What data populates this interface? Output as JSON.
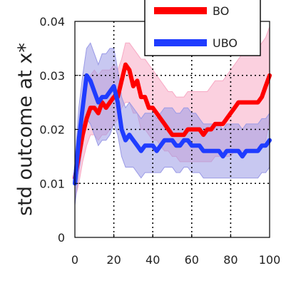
{
  "chart_data": {
    "type": "line",
    "xlabel": "",
    "ylabel": "std outcome at x*",
    "xlim": [
      0,
      100
    ],
    "ylim": [
      0,
      0.04
    ],
    "xticks": [
      0,
      20,
      40,
      60,
      80,
      100
    ],
    "xtick_labels": [
      "0",
      "20",
      "40",
      "60",
      "80",
      "100"
    ],
    "yticks": [
      0,
      0.01,
      0.02,
      0.03,
      0.04
    ],
    "ytick_labels": [
      "0",
      "0.01",
      "0.02",
      "0.03",
      "0.04"
    ],
    "grid": true,
    "legend_position": "top-right",
    "series": [
      {
        "name": "BO",
        "color": "#ff0000",
        "band_color": "#f7a9c4",
        "x": [
          0,
          2,
          4,
          6,
          8,
          10,
          12,
          14,
          16,
          18,
          20,
          22,
          24,
          26,
          28,
          30,
          32,
          34,
          36,
          38,
          40,
          42,
          44,
          46,
          48,
          50,
          52,
          54,
          56,
          58,
          60,
          62,
          64,
          66,
          68,
          70,
          72,
          74,
          76,
          78,
          80,
          82,
          84,
          86,
          88,
          90,
          92,
          94,
          96,
          98,
          100
        ],
        "mean": [
          0.011,
          0.015,
          0.019,
          0.022,
          0.024,
          0.024,
          0.023,
          0.025,
          0.024,
          0.025,
          0.026,
          0.026,
          0.029,
          0.032,
          0.031,
          0.028,
          0.029,
          0.026,
          0.026,
          0.024,
          0.024,
          0.023,
          0.022,
          0.021,
          0.02,
          0.019,
          0.019,
          0.019,
          0.019,
          0.02,
          0.02,
          0.02,
          0.02,
          0.019,
          0.02,
          0.02,
          0.021,
          0.021,
          0.021,
          0.022,
          0.023,
          0.024,
          0.025,
          0.025,
          0.025,
          0.025,
          0.025,
          0.025,
          0.026,
          0.028,
          0.03
        ],
        "lower": [
          0.007,
          0.01,
          0.014,
          0.017,
          0.019,
          0.019,
          0.018,
          0.019,
          0.019,
          0.02,
          0.021,
          0.022,
          0.024,
          0.025,
          0.025,
          0.023,
          0.023,
          0.02,
          0.02,
          0.019,
          0.018,
          0.018,
          0.017,
          0.016,
          0.016,
          0.015,
          0.015,
          0.014,
          0.014,
          0.014,
          0.014,
          0.014,
          0.014,
          0.014,
          0.014,
          0.014,
          0.015,
          0.015,
          0.015,
          0.015,
          0.015,
          0.016,
          0.016,
          0.016,
          0.016,
          0.016,
          0.016,
          0.016,
          0.017,
          0.018,
          0.022
        ],
        "upper": [
          0.013,
          0.02,
          0.025,
          0.028,
          0.03,
          0.031,
          0.03,
          0.031,
          0.031,
          0.031,
          0.032,
          0.031,
          0.033,
          0.036,
          0.036,
          0.035,
          0.034,
          0.033,
          0.033,
          0.032,
          0.031,
          0.03,
          0.029,
          0.028,
          0.027,
          0.027,
          0.026,
          0.026,
          0.026,
          0.027,
          0.027,
          0.027,
          0.027,
          0.027,
          0.027,
          0.028,
          0.029,
          0.029,
          0.029,
          0.03,
          0.031,
          0.032,
          0.033,
          0.034,
          0.034,
          0.034,
          0.035,
          0.035,
          0.036,
          0.037,
          0.039
        ]
      },
      {
        "name": "UBO",
        "color": "#1f3cff",
        "band_color": "#9a9ae6",
        "x": [
          0,
          2,
          4,
          6,
          8,
          10,
          12,
          14,
          16,
          18,
          20,
          22,
          24,
          26,
          28,
          30,
          32,
          34,
          36,
          38,
          40,
          42,
          44,
          46,
          48,
          50,
          52,
          54,
          56,
          58,
          60,
          62,
          64,
          66,
          68,
          70,
          72,
          74,
          76,
          78,
          80,
          82,
          84,
          86,
          88,
          90,
          92,
          94,
          96,
          98,
          100
        ],
        "mean": [
          0.01,
          0.018,
          0.024,
          0.03,
          0.029,
          0.027,
          0.025,
          0.026,
          0.026,
          0.027,
          0.028,
          0.025,
          0.02,
          0.018,
          0.019,
          0.018,
          0.017,
          0.016,
          0.017,
          0.017,
          0.017,
          0.016,
          0.017,
          0.018,
          0.018,
          0.018,
          0.017,
          0.017,
          0.018,
          0.018,
          0.017,
          0.017,
          0.017,
          0.016,
          0.016,
          0.016,
          0.016,
          0.016,
          0.015,
          0.016,
          0.016,
          0.016,
          0.016,
          0.015,
          0.016,
          0.016,
          0.016,
          0.016,
          0.017,
          0.017,
          0.018
        ],
        "lower": [
          0.006,
          0.012,
          0.017,
          0.022,
          0.021,
          0.019,
          0.017,
          0.018,
          0.018,
          0.019,
          0.021,
          0.019,
          0.015,
          0.013,
          0.013,
          0.013,
          0.012,
          0.011,
          0.012,
          0.012,
          0.012,
          0.012,
          0.012,
          0.013,
          0.013,
          0.013,
          0.012,
          0.012,
          0.013,
          0.013,
          0.012,
          0.012,
          0.012,
          0.011,
          0.011,
          0.011,
          0.011,
          0.011,
          0.011,
          0.011,
          0.011,
          0.011,
          0.011,
          0.011,
          0.011,
          0.011,
          0.011,
          0.011,
          0.012,
          0.012,
          0.013
        ],
        "upper": [
          0.014,
          0.024,
          0.03,
          0.035,
          0.036,
          0.034,
          0.032,
          0.034,
          0.034,
          0.035,
          0.035,
          0.031,
          0.026,
          0.024,
          0.025,
          0.024,
          0.023,
          0.022,
          0.023,
          0.023,
          0.023,
          0.022,
          0.023,
          0.024,
          0.024,
          0.024,
          0.023,
          0.023,
          0.024,
          0.024,
          0.023,
          0.023,
          0.022,
          0.021,
          0.021,
          0.021,
          0.021,
          0.021,
          0.02,
          0.021,
          0.021,
          0.021,
          0.021,
          0.02,
          0.021,
          0.021,
          0.021,
          0.021,
          0.022,
          0.022,
          0.023
        ]
      }
    ]
  }
}
